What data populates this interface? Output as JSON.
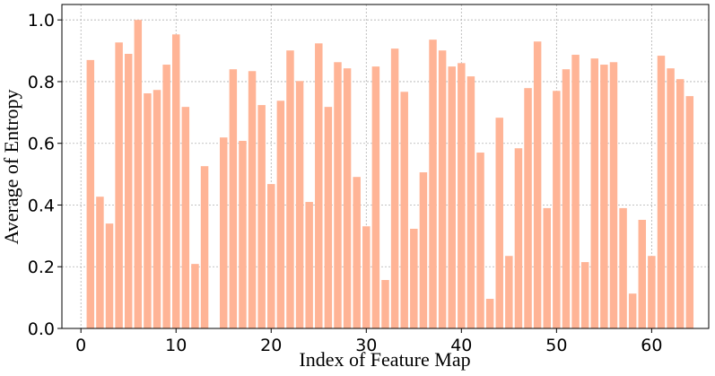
{
  "chart_data": {
    "type": "bar",
    "x_label": "Index of Feature Map",
    "y_label": "Average of Entropy",
    "x": [
      1,
      2,
      3,
      4,
      5,
      6,
      7,
      8,
      9,
      10,
      11,
      12,
      13,
      14,
      15,
      16,
      17,
      18,
      19,
      20,
      21,
      22,
      23,
      24,
      25,
      26,
      27,
      28,
      29,
      30,
      31,
      32,
      33,
      34,
      35,
      36,
      37,
      38,
      39,
      40,
      41,
      42,
      43,
      44,
      45,
      46,
      47,
      48,
      49,
      50,
      51,
      52,
      53,
      54,
      55,
      56,
      57,
      58,
      59,
      60,
      61,
      62,
      63,
      64
    ],
    "values": [
      0.87,
      0.427,
      0.34,
      0.927,
      0.89,
      1.0,
      0.762,
      0.773,
      0.855,
      0.953,
      0.718,
      0.209,
      0.526,
      0,
      0.619,
      0.84,
      0.608,
      0.834,
      0.724,
      0.468,
      0.738,
      0.901,
      0.802,
      0.41,
      0.924,
      0.718,
      0.863,
      0.843,
      0.491,
      0.331,
      0.849,
      0.157,
      0.907,
      0.767,
      0.323,
      0.506,
      0.936,
      0.901,
      0.849,
      0.86,
      0.817,
      0.57,
      0.096,
      0.683,
      0.235,
      0.584,
      0.779,
      0.93,
      0.39,
      0.77,
      0.84,
      0.887,
      0.215,
      0.875,
      0.855,
      0.863,
      0.39,
      0.113,
      0.352,
      0.235,
      0.884,
      0.843,
      0.808,
      0.753
    ],
    "color": "#ffb496",
    "xlim": [
      -2,
      66
    ],
    "xticks": [
      0,
      10,
      20,
      30,
      40,
      50,
      60
    ],
    "ylim": [
      0,
      1.05
    ],
    "yticks": [
      {
        "value": 0,
        "label": "0.0"
      },
      {
        "value": 0.2,
        "label": "0.2"
      },
      {
        "value": 0.4,
        "label": "0.4"
      },
      {
        "value": 0.6,
        "label": "0.6"
      },
      {
        "value": 0.8,
        "label": "0.8"
      },
      {
        "value": 1.0,
        "label": "1.0"
      }
    ],
    "grid": true
  }
}
